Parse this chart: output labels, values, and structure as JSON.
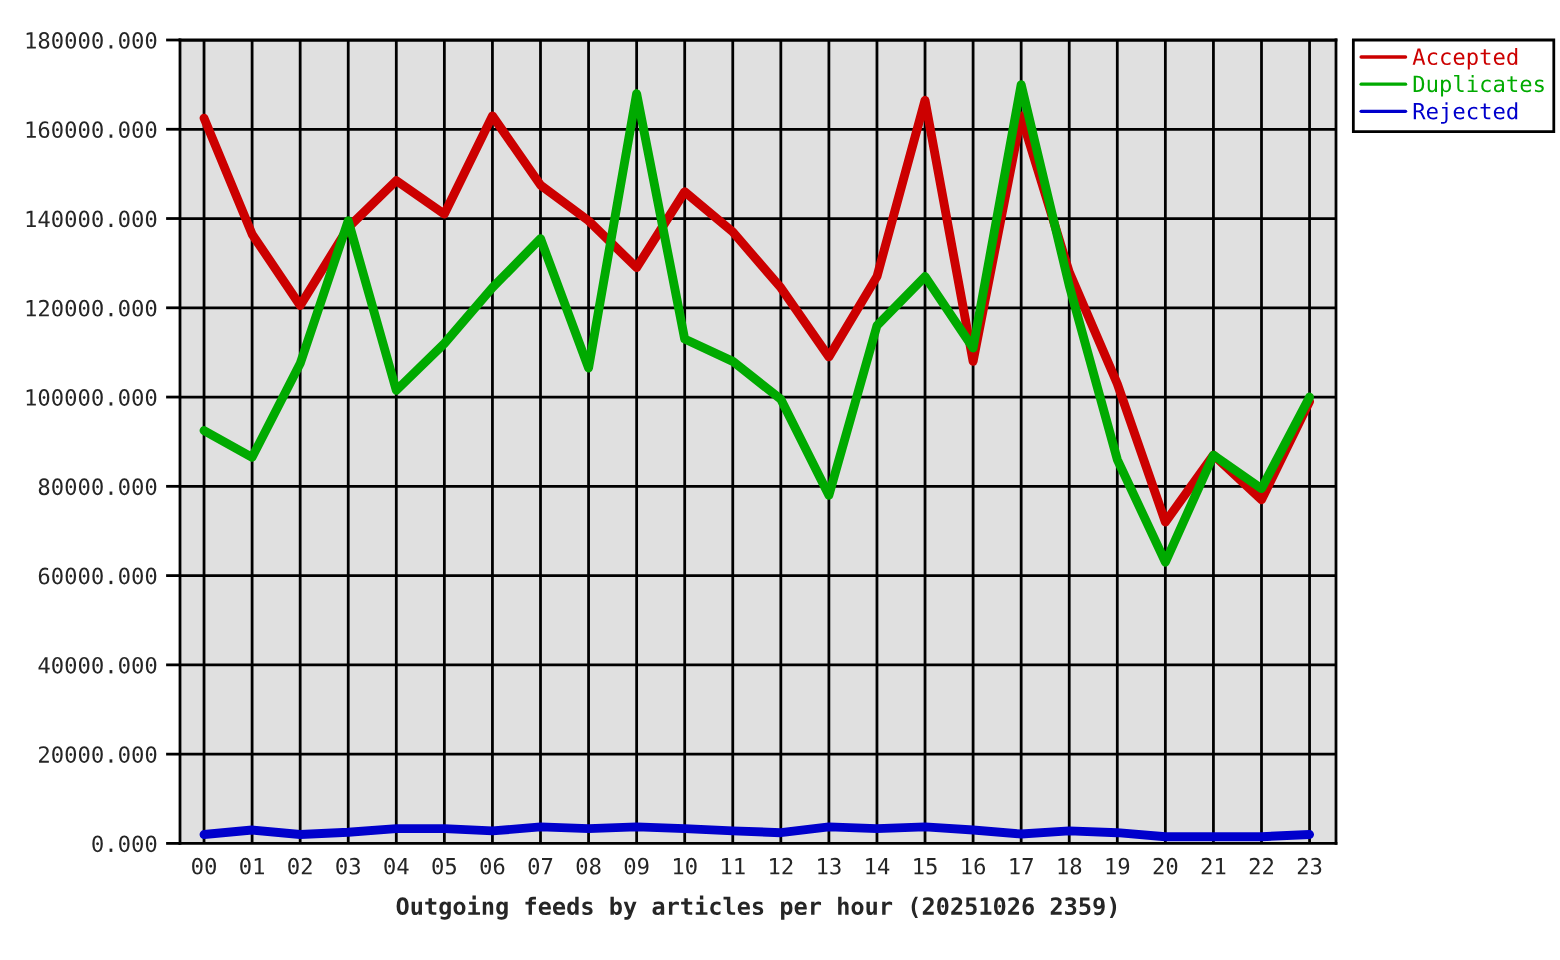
{
  "chart_data": {
    "type": "line",
    "xlabel": "Outgoing feeds by articles per hour (20251026 2359)",
    "categories": [
      "00",
      "01",
      "02",
      "03",
      "04",
      "05",
      "06",
      "07",
      "08",
      "09",
      "10",
      "11",
      "12",
      "13",
      "14",
      "15",
      "16",
      "17",
      "18",
      "19",
      "20",
      "21",
      "22",
      "23"
    ],
    "series": [
      {
        "name": "Accepted",
        "color": "#cc0000",
        "values": [
          162500,
          136500,
          120500,
          138000,
          148500,
          141000,
          163000,
          147500,
          139500,
          129000,
          146000,
          137000,
          124500,
          109000,
          127000,
          166500,
          108000,
          163000,
          128000,
          103000,
          72000,
          87000,
          77000,
          99000
        ]
      },
      {
        "name": "Duplicates",
        "color": "#00aa00",
        "values": [
          92500,
          86500,
          107500,
          139500,
          101500,
          112000,
          124500,
          135500,
          106500,
          168000,
          113000,
          108000,
          99500,
          78000,
          116000,
          127000,
          111000,
          170000,
          125000,
          86000,
          63000,
          87000,
          79500,
          100000
        ]
      },
      {
        "name": "Rejected",
        "color": "#0000cc",
        "values": [
          2000,
          3000,
          2000,
          2500,
          3300,
          3300,
          2800,
          3700,
          3300,
          3700,
          3300,
          2800,
          2400,
          3700,
          3300,
          3700,
          3000,
          2100,
          2800,
          2400,
          1500,
          1500,
          1500,
          2000
        ]
      }
    ],
    "ylim": [
      0,
      180000
    ],
    "yticks": [
      {
        "value": 0,
        "label": "0.000"
      },
      {
        "value": 20000,
        "label": "20000.000"
      },
      {
        "value": 40000,
        "label": "40000.000"
      },
      {
        "value": 60000,
        "label": "60000.000"
      },
      {
        "value": 80000,
        "label": "80000.000"
      },
      {
        "value": 100000,
        "label": "100000.000"
      },
      {
        "value": 120000,
        "label": "120000.000"
      },
      {
        "value": 140000,
        "label": "140000.000"
      },
      {
        "value": 160000,
        "label": "160000.000"
      },
      {
        "value": 180000,
        "label": "180000.000"
      }
    ],
    "grid": true,
    "legend": "top right"
  }
}
